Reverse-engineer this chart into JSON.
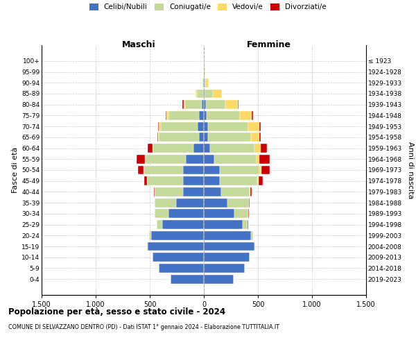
{
  "age_groups": [
    "0-4",
    "5-9",
    "10-14",
    "15-19",
    "20-24",
    "25-29",
    "30-34",
    "35-39",
    "40-44",
    "45-49",
    "50-54",
    "55-59",
    "60-64",
    "65-69",
    "70-74",
    "75-79",
    "80-84",
    "85-89",
    "90-94",
    "95-99",
    "100+"
  ],
  "birth_years": [
    "2019-2023",
    "2014-2018",
    "2009-2013",
    "2004-2008",
    "1999-2003",
    "1994-1998",
    "1989-1993",
    "1984-1988",
    "1979-1983",
    "1974-1978",
    "1969-1973",
    "1964-1968",
    "1959-1963",
    "1954-1958",
    "1949-1953",
    "1944-1948",
    "1939-1943",
    "1934-1938",
    "1929-1933",
    "1924-1928",
    "≤ 1923"
  ],
  "colors": {
    "celibe": "#4472C4",
    "coniugato": "#c5d99a",
    "vedovo": "#ffd966",
    "divorziato": "#cc0000"
  },
  "maschi": {
    "celibe": [
      310,
      415,
      475,
      520,
      490,
      385,
      325,
      255,
      195,
      195,
      195,
      165,
      95,
      48,
      55,
      48,
      22,
      8,
      4,
      2,
      1
    ],
    "coniugato": [
      0,
      0,
      0,
      4,
      18,
      48,
      128,
      198,
      258,
      328,
      358,
      375,
      375,
      368,
      342,
      278,
      148,
      58,
      8,
      0,
      0
    ],
    "vedovo": [
      0,
      0,
      0,
      0,
      0,
      0,
      0,
      0,
      0,
      0,
      4,
      4,
      4,
      8,
      18,
      18,
      18,
      8,
      4,
      0,
      0
    ],
    "divorziato": [
      0,
      0,
      0,
      0,
      0,
      0,
      4,
      4,
      8,
      28,
      52,
      78,
      48,
      8,
      8,
      8,
      8,
      4,
      0,
      0,
      0
    ]
  },
  "femmine": {
    "nubile": [
      278,
      378,
      425,
      468,
      435,
      358,
      285,
      218,
      158,
      148,
      148,
      98,
      58,
      38,
      38,
      28,
      18,
      8,
      4,
      2,
      1
    ],
    "coniugata": [
      0,
      0,
      0,
      4,
      18,
      48,
      128,
      198,
      268,
      348,
      368,
      388,
      408,
      395,
      375,
      308,
      178,
      78,
      14,
      0,
      0
    ],
    "vedova": [
      0,
      0,
      0,
      0,
      0,
      0,
      0,
      0,
      4,
      8,
      18,
      28,
      58,
      78,
      98,
      108,
      118,
      78,
      28,
      8,
      4
    ],
    "divorziata": [
      0,
      0,
      0,
      0,
      0,
      4,
      4,
      8,
      14,
      38,
      78,
      98,
      58,
      14,
      14,
      14,
      8,
      4,
      0,
      0,
      0
    ]
  },
  "xlim": 1500,
  "xticks": [
    -1500,
    -1000,
    -500,
    0,
    500,
    1000,
    1500
  ],
  "xticklabels": [
    "1.500",
    "1.000",
    "500",
    "0",
    "500",
    "1.000",
    "1.500"
  ],
  "title1": "Popolazione per età, sesso e stato civile - 2024",
  "title2": "COMUNE DI SELVAZZANO DENTRO (PD) - Dati ISTAT 1° gennaio 2024 - Elaborazione TUTTITALIA.IT",
  "ylabel_left": "Fasce di età",
  "ylabel_right": "Anni di nascita",
  "label_maschi": "Maschi",
  "label_femmine": "Femmine",
  "legend_labels": [
    "Celibi/Nubili",
    "Coniugati/e",
    "Vedovi/e",
    "Divorziati/e"
  ]
}
